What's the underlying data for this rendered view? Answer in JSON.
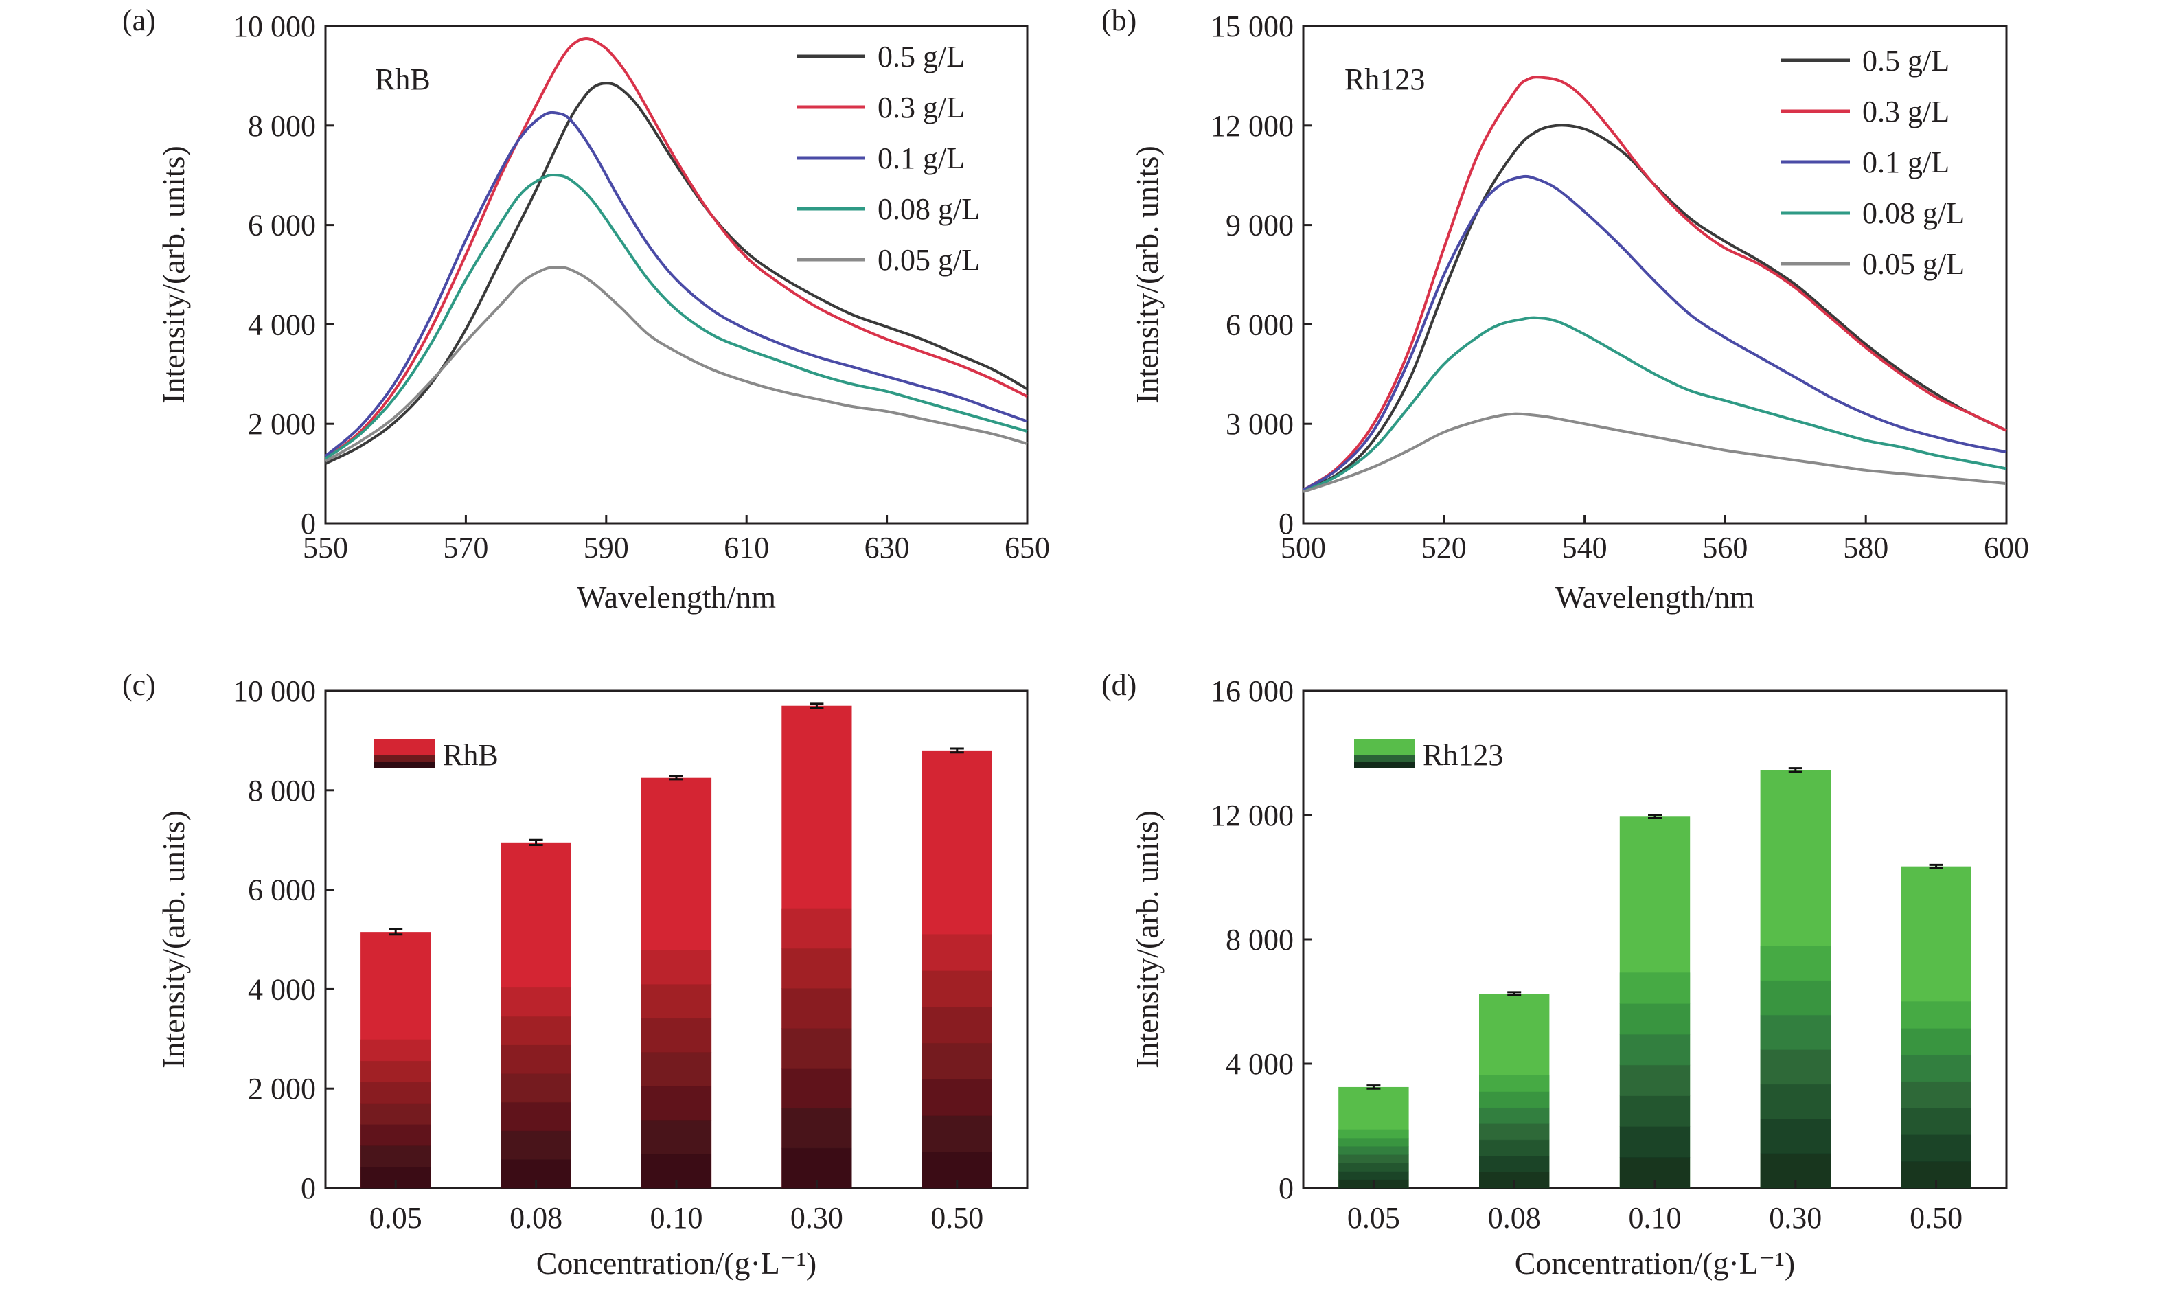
{
  "chart_data": [
    {
      "panel": "(a)",
      "type": "line",
      "label": "RhB",
      "xlabel": "Wavelength/nm",
      "ylabel": "Intensity/(arb. units)",
      "xlim": [
        550,
        650
      ],
      "ylim": [
        0,
        10000
      ],
      "xticks": [
        "550",
        "570",
        "590",
        "610",
        "630",
        "650"
      ],
      "yticks": [
        "0",
        "2 000",
        "4 000",
        "6 000",
        "8 000",
        "10 000"
      ],
      "legend_position": "top-right",
      "grid": false,
      "series": [
        {
          "name": "0.5 g/L",
          "color": "#3a3a3a",
          "x": [
            550,
            555,
            560,
            565,
            570,
            575,
            580,
            584,
            586,
            588,
            590,
            592,
            595,
            600,
            605,
            610,
            615,
            620,
            625,
            630,
            635,
            640,
            645,
            650
          ],
          "y": [
            1200,
            1550,
            2050,
            2800,
            3900,
            5300,
            6700,
            7900,
            8400,
            8750,
            8850,
            8750,
            8300,
            7200,
            6200,
            5450,
            4950,
            4550,
            4200,
            3950,
            3700,
            3400,
            3100,
            2700
          ]
        },
        {
          "name": "0.3 g/L",
          "color": "#d9334a",
          "x": [
            550,
            555,
            560,
            565,
            570,
            575,
            580,
            583,
            585,
            587,
            589,
            591,
            594,
            600,
            605,
            610,
            615,
            620,
            625,
            630,
            635,
            640,
            645,
            650
          ],
          "y": [
            1300,
            1850,
            2700,
            3900,
            5400,
            7000,
            8400,
            9200,
            9600,
            9750,
            9650,
            9400,
            8800,
            7300,
            6200,
            5350,
            4800,
            4350,
            4000,
            3700,
            3450,
            3200,
            2900,
            2550
          ]
        },
        {
          "name": "0.1 g/L",
          "color": "#4a4ba6",
          "x": [
            550,
            555,
            560,
            565,
            570,
            575,
            578,
            581,
            583,
            585,
            588,
            592,
            596,
            600,
            605,
            610,
            615,
            620,
            625,
            630,
            635,
            640,
            645,
            650
          ],
          "y": [
            1350,
            1950,
            2850,
            4150,
            5700,
            7100,
            7800,
            8200,
            8250,
            8100,
            7500,
            6500,
            5600,
            4900,
            4300,
            3900,
            3600,
            3350,
            3150,
            2950,
            2750,
            2550,
            2300,
            2050
          ]
        },
        {
          "name": "0.08 g/L",
          "color": "#2f9a85",
          "x": [
            550,
            555,
            560,
            565,
            570,
            575,
            578,
            581,
            583,
            585,
            588,
            592,
            596,
            600,
            605,
            610,
            615,
            620,
            625,
            630,
            635,
            640,
            645,
            650
          ],
          "y": [
            1300,
            1800,
            2550,
            3600,
            4900,
            6050,
            6650,
            6950,
            7000,
            6900,
            6500,
            5700,
            4900,
            4300,
            3800,
            3500,
            3250,
            3000,
            2800,
            2650,
            2450,
            2250,
            2050,
            1850
          ]
        },
        {
          "name": "0.05 g/L",
          "color": "#8a8a8a",
          "x": [
            550,
            555,
            560,
            565,
            570,
            575,
            578,
            581,
            583,
            585,
            588,
            592,
            596,
            600,
            605,
            610,
            615,
            620,
            625,
            630,
            635,
            640,
            645,
            650
          ],
          "y": [
            1250,
            1650,
            2150,
            2850,
            3650,
            4400,
            4850,
            5100,
            5150,
            5100,
            4850,
            4350,
            3800,
            3450,
            3100,
            2850,
            2650,
            2500,
            2350,
            2250,
            2100,
            1950,
            1800,
            1600
          ]
        }
      ]
    },
    {
      "panel": "(b)",
      "type": "line",
      "label": "Rh123",
      "xlabel": "Wavelength/nm",
      "ylabel": "Intensity/(arb. units)",
      "xlim": [
        500,
        600
      ],
      "ylim": [
        0,
        15000
      ],
      "xticks": [
        "500",
        "520",
        "540",
        "560",
        "580",
        "600"
      ],
      "yticks": [
        "0",
        "3 000",
        "6 000",
        "9 000",
        "12 000",
        "15 000"
      ],
      "legend_position": "top-right",
      "grid": false,
      "series": [
        {
          "name": "0.5 g/L",
          "color": "#3a3a3a",
          "x": [
            500,
            505,
            510,
            515,
            520,
            525,
            530,
            533,
            536,
            539,
            542,
            546,
            550,
            555,
            560,
            565,
            570,
            575,
            580,
            585,
            590,
            595,
            600
          ],
          "y": [
            1000,
            1500,
            2500,
            4300,
            7000,
            9500,
            11200,
            11800,
            12000,
            11950,
            11700,
            11100,
            10200,
            9200,
            8500,
            7900,
            7200,
            6300,
            5400,
            4600,
            3900,
            3300,
            2800
          ]
        },
        {
          "name": "0.3 g/L",
          "color": "#d9334a",
          "x": [
            500,
            505,
            510,
            515,
            520,
            525,
            530,
            532,
            534,
            537,
            540,
            544,
            548,
            552,
            556,
            560,
            565,
            570,
            575,
            580,
            585,
            590,
            595,
            600
          ],
          "y": [
            1000,
            1700,
            3000,
            5200,
            8300,
            11200,
            13000,
            13400,
            13450,
            13300,
            12800,
            11800,
            10700,
            9700,
            8900,
            8300,
            7800,
            7100,
            6200,
            5300,
            4500,
            3800,
            3300,
            2800
          ]
        },
        {
          "name": "0.1 g/L",
          "color": "#4a4ba6",
          "x": [
            500,
            505,
            510,
            515,
            520,
            525,
            528,
            531,
            533,
            536,
            540,
            545,
            550,
            555,
            560,
            565,
            570,
            575,
            580,
            585,
            590,
            595,
            600
          ],
          "y": [
            1000,
            1650,
            2800,
            4900,
            7500,
            9500,
            10200,
            10450,
            10400,
            10100,
            9400,
            8400,
            7300,
            6300,
            5600,
            5000,
            4400,
            3800,
            3300,
            2900,
            2600,
            2350,
            2150
          ]
        },
        {
          "name": "0.08 g/L",
          "color": "#2f9a85",
          "x": [
            500,
            505,
            510,
            515,
            520,
            525,
            528,
            531,
            533,
            536,
            540,
            545,
            550,
            555,
            560,
            565,
            570,
            575,
            580,
            585,
            590,
            595,
            600
          ],
          "y": [
            950,
            1450,
            2250,
            3500,
            4800,
            5650,
            6000,
            6150,
            6200,
            6100,
            5700,
            5100,
            4500,
            4000,
            3700,
            3400,
            3100,
            2800,
            2500,
            2300,
            2050,
            1850,
            1650
          ]
        },
        {
          "name": "0.05 g/L",
          "color": "#8a8a8a",
          "x": [
            500,
            505,
            510,
            515,
            520,
            525,
            528,
            530,
            532,
            535,
            540,
            545,
            550,
            555,
            560,
            565,
            570,
            575,
            580,
            585,
            590,
            595,
            600
          ],
          "y": [
            950,
            1300,
            1700,
            2200,
            2750,
            3100,
            3250,
            3300,
            3280,
            3200,
            3000,
            2800,
            2600,
            2400,
            2200,
            2050,
            1900,
            1750,
            1600,
            1500,
            1400,
            1300,
            1200
          ]
        }
      ]
    },
    {
      "panel": "(c)",
      "type": "bar",
      "xlabel": "Concentration/(g·L⁻¹)",
      "ylabel": "Intensity/(arb. units)",
      "ylim": [
        0,
        10000
      ],
      "yticks": [
        "0",
        "2 000",
        "4 000",
        "6 000",
        "8 000",
        "10 000"
      ],
      "categories": [
        "0.05",
        "0.08",
        "0.10",
        "0.30",
        "0.50"
      ],
      "legend_position": "top-left",
      "grid": false,
      "series": [
        {
          "name": "RhB",
          "color": "#d42533",
          "values": [
            5150,
            6950,
            8250,
            9700,
            8800
          ],
          "error": [
            50,
            50,
            30,
            40,
            40
          ]
        }
      ]
    },
    {
      "panel": "(d)",
      "type": "bar",
      "xlabel": "Concentration/(g·L⁻¹)",
      "ylabel": "Intensity/(arb. units)",
      "ylim": [
        0,
        16000
      ],
      "yticks": [
        "0",
        "4 000",
        "8 000",
        "12 000",
        "16 000"
      ],
      "categories": [
        "0.05",
        "0.08",
        "0.10",
        "0.30",
        "0.50"
      ],
      "legend_position": "top-left",
      "grid": false,
      "series": [
        {
          "name": "Rh123",
          "color": "#58bd4a",
          "values": [
            3250,
            6250,
            11950,
            13450,
            10350
          ],
          "error": [
            50,
            50,
            50,
            60,
            50
          ]
        }
      ]
    }
  ]
}
